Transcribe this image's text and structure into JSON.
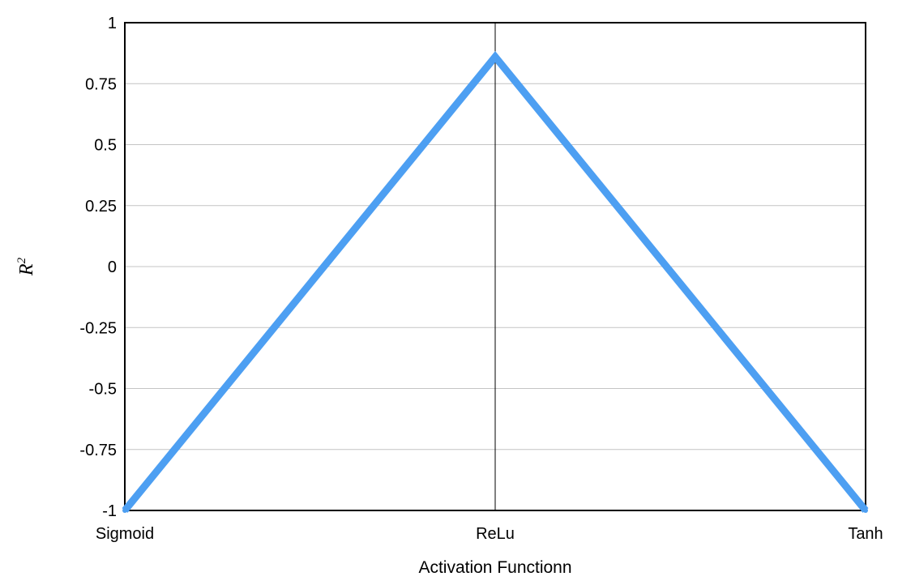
{
  "chart_data": {
    "type": "line",
    "title": "",
    "xlabel": "Activation Functionn",
    "ylabel": "R",
    "ylabel_superscript": "2",
    "categories": [
      "Sigmoid",
      "ReLu",
      "Tanh"
    ],
    "series": [
      {
        "values": [
          -1,
          0.86,
          -1
        ],
        "color": "#4d9ff2"
      }
    ],
    "ylim": [
      -1,
      1
    ],
    "yticks": [
      1,
      0.75,
      0.5,
      0.25,
      0,
      -0.25,
      -0.5,
      -0.75,
      -1
    ],
    "ytick_labels": [
      "1",
      "0.75",
      "0.5",
      "0.25",
      "0",
      "-0.25",
      "-0.5",
      "-0.75",
      "-1"
    ],
    "grid": true,
    "legend": "none"
  }
}
